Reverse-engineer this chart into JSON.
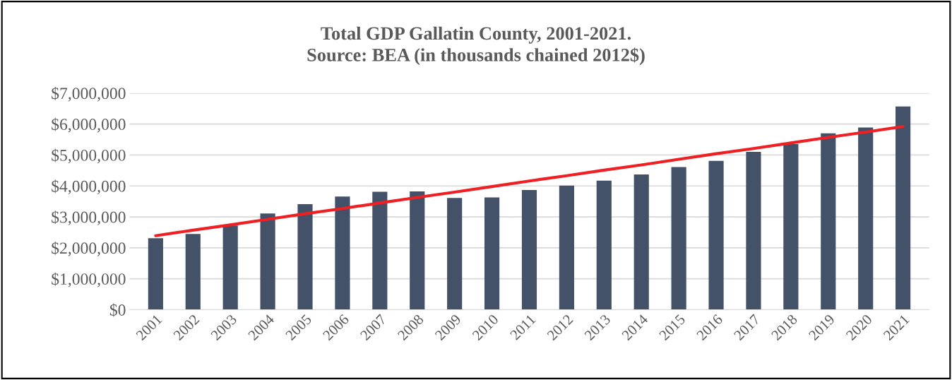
{
  "chart_data": {
    "type": "bar",
    "title": "Total GDP Gallatin County, 2001-2021.\nSource: BEA (in thousands chained 2012$)",
    "categories": [
      "2001",
      "2002",
      "2003",
      "2004",
      "2005",
      "2006",
      "2007",
      "2008",
      "2009",
      "2010",
      "2011",
      "2012",
      "2013",
      "2014",
      "2015",
      "2016",
      "2017",
      "2018",
      "2019",
      "2020",
      "2021"
    ],
    "series": [
      {
        "color": "#435268",
        "values": [
          2310000,
          2450000,
          2720000,
          3110000,
          3410000,
          3660000,
          3810000,
          3820000,
          3610000,
          3630000,
          3870000,
          4010000,
          4170000,
          4370000,
          4610000,
          4810000,
          5100000,
          5350000,
          5700000,
          5890000,
          6570000
        ]
      },
      {
        "type": "line",
        "color": "#ee2024",
        "values": [
          2390000,
          2570000,
          2740000,
          2920000,
          3100000,
          3270000,
          3450000,
          3630000,
          3800000,
          3980000,
          4160000,
          4330000,
          4510000,
          4680000,
          4860000,
          5040000,
          5210000,
          5390000,
          5570000,
          5740000,
          5920000
        ]
      }
    ],
    "ylim": [
      0,
      7000000
    ],
    "yticks": [
      {
        "value": 0,
        "label": "$0"
      },
      {
        "value": 1000000,
        "label": "$1,000,000"
      },
      {
        "value": 2000000,
        "label": "$2,000,000"
      },
      {
        "value": 3000000,
        "label": "$3,000,000"
      },
      {
        "value": 4000000,
        "label": "$4,000,000"
      },
      {
        "value": 5000000,
        "label": "$5,000,000"
      },
      {
        "value": 6000000,
        "label": "$6,000,000"
      },
      {
        "value": 7000000,
        "label": "$7,000,000"
      }
    ],
    "grid": "y"
  }
}
